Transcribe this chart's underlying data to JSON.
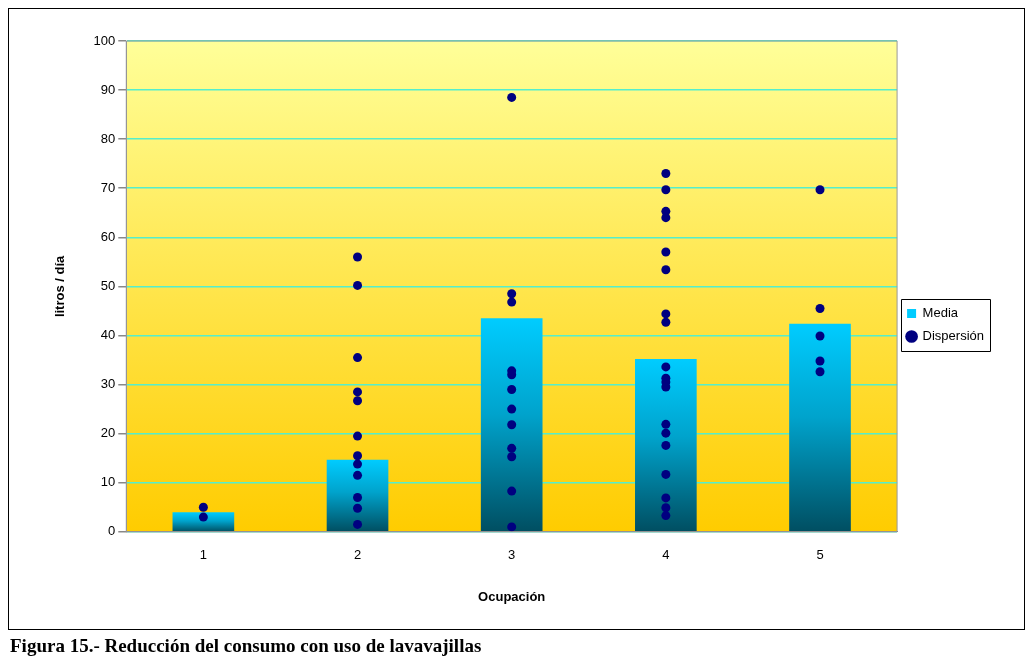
{
  "chart_data": {
    "type": "bar",
    "title": "Figura 15.- Reducción del consumo con uso de lavavajillas",
    "xlabel": "Ocupación",
    "ylabel": "litros / día",
    "categories": [
      "1",
      "2",
      "3",
      "4",
      "5"
    ],
    "series": [
      {
        "name": "Media",
        "color": "#00ccff",
        "values": [
          4,
          14.7,
          43.5,
          35.2,
          42.4
        ]
      },
      {
        "name": "Dispersión",
        "type": "scatter",
        "color": "#000080",
        "x": [
          "1",
          "1",
          "2",
          "2",
          "2",
          "2",
          "2",
          "2",
          "2",
          "2",
          "2",
          "2",
          "2",
          "2",
          "3",
          "3",
          "3",
          "3",
          "3",
          "3",
          "3",
          "3",
          "3",
          "3",
          "3",
          "3",
          "4",
          "4",
          "4",
          "4",
          "4",
          "4",
          "4",
          "4",
          "4",
          "4",
          "4",
          "4",
          "4",
          "4",
          "4",
          "4",
          "4",
          "4",
          "4",
          "5",
          "5",
          "5",
          "5",
          "5"
        ],
        "values": [
          5,
          3,
          56,
          50.2,
          35.5,
          28.5,
          26.7,
          19.5,
          15.5,
          13.8,
          11.5,
          7,
          4.8,
          1.5,
          88.5,
          48.5,
          46.8,
          32.8,
          32,
          29,
          25,
          21.8,
          17,
          15.3,
          8.3,
          1,
          73,
          69.7,
          65.3,
          64,
          57,
          53.4,
          44.4,
          42.7,
          33.6,
          31.3,
          30.5,
          29.5,
          21.9,
          20.1,
          17.6,
          11.7,
          6.9,
          4.9,
          3.3,
          69.7,
          45.5,
          39.9,
          34.8,
          32.6
        ]
      }
    ],
    "ylim": [
      0,
      100
    ],
    "yticks": [
      0,
      10,
      20,
      30,
      40,
      50,
      60,
      70,
      80,
      90,
      100
    ],
    "grid": "y",
    "legend": "right",
    "marker": "circle"
  }
}
